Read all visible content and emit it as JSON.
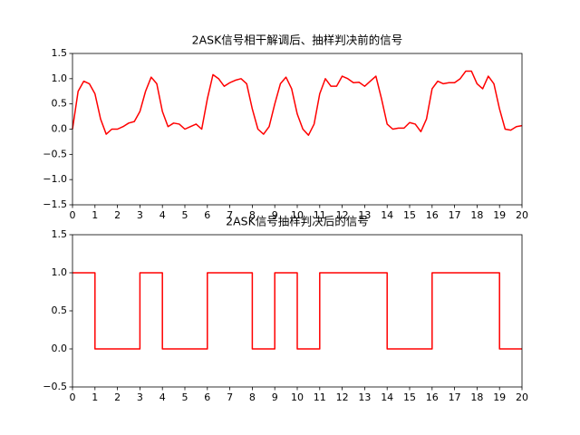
{
  "chart_data": [
    {
      "type": "line",
      "title": "2ASK信号相干解调后、抽样判决前的信号",
      "x": [
        0,
        0.25,
        0.5,
        0.75,
        1,
        1.25,
        1.5,
        1.75,
        2,
        2.25,
        2.5,
        2.75,
        3,
        3.25,
        3.5,
        3.75,
        4,
        4.25,
        4.5,
        4.75,
        5,
        5.25,
        5.5,
        5.75,
        6,
        6.25,
        6.5,
        6.75,
        7,
        7.25,
        7.5,
        7.75,
        8,
        8.25,
        8.5,
        8.75,
        9,
        9.25,
        9.5,
        9.75,
        10,
        10.25,
        10.5,
        10.75,
        11,
        11.25,
        11.5,
        11.75,
        12,
        12.25,
        12.5,
        12.75,
        13,
        13.25,
        13.5,
        13.75,
        14,
        14.25,
        14.5,
        14.75,
        15,
        15.25,
        15.5,
        15.75,
        16,
        16.25,
        16.5,
        16.75,
        17,
        17.25,
        17.5,
        17.75,
        18,
        18.25,
        18.5,
        18.75,
        19,
        19.25,
        19.5,
        19.75,
        20
      ],
      "series": [
        {
          "color": "#ff0000",
          "values": [
            0.0,
            0.75,
            0.95,
            0.9,
            0.7,
            0.2,
            -0.1,
            0.0,
            0.0,
            0.05,
            0.12,
            0.15,
            0.35,
            0.75,
            1.03,
            0.9,
            0.35,
            0.05,
            0.12,
            0.1,
            0.0,
            0.05,
            0.1,
            0.0,
            0.6,
            1.08,
            1.0,
            0.85,
            0.92,
            0.97,
            1.0,
            0.9,
            0.4,
            0.0,
            -0.1,
            0.05,
            0.5,
            0.9,
            1.03,
            0.8,
            0.3,
            0.0,
            -0.12,
            0.1,
            0.7,
            1.0,
            0.85,
            0.85,
            1.05,
            1.0,
            0.92,
            0.93,
            0.85,
            0.95,
            1.05,
            0.6,
            0.1,
            0.0,
            0.02,
            0.02,
            0.13,
            0.1,
            -0.05,
            0.2,
            0.8,
            0.95,
            0.9,
            0.92,
            0.92,
            1.0,
            1.15,
            1.15,
            0.9,
            0.8,
            1.05,
            0.9,
            0.4,
            0.0,
            -0.02,
            0.05,
            0.07
          ]
        }
      ],
      "xlim": [
        0,
        20
      ],
      "xticks": [
        0,
        1,
        2,
        3,
        4,
        5,
        6,
        7,
        8,
        9,
        10,
        11,
        12,
        13,
        14,
        15,
        16,
        17,
        18,
        19,
        20
      ],
      "ylim": [
        -1.5,
        1.5
      ],
      "yticks": [
        {
          "value": -1.5,
          "label": "−1.5"
        },
        {
          "value": -1,
          "label": "−1.0"
        },
        {
          "value": -0.5,
          "label": "−0.5"
        },
        {
          "value": 0,
          "label": "0.0"
        },
        0.5,
        {
          "value": 1,
          "label": "1.0"
        },
        1.5
      ]
    },
    {
      "type": "line",
      "title": "2ASK信号抽样判决后的信号",
      "x": [
        0,
        1,
        1,
        3,
        3,
        4,
        4,
        6,
        6,
        8,
        8,
        9,
        9,
        10,
        10,
        11,
        11,
        14,
        14,
        16,
        16,
        19,
        19,
        20
      ],
      "series": [
        {
          "color": "#ff0000",
          "values": [
            1,
            1,
            0,
            0,
            1,
            1,
            0,
            0,
            1,
            1,
            0,
            0,
            1,
            1,
            0,
            0,
            1,
            1,
            0,
            0,
            1,
            1,
            0,
            0
          ]
        }
      ],
      "xlim": [
        0,
        20
      ],
      "xticks": [
        0,
        1,
        2,
        3,
        4,
        5,
        6,
        7,
        8,
        9,
        10,
        11,
        12,
        13,
        14,
        15,
        16,
        17,
        18,
        19,
        20
      ],
      "ylim": [
        -0.5,
        1.5
      ],
      "yticks": [
        {
          "value": -0.5,
          "label": "−0.5"
        },
        {
          "value": 0,
          "label": "0.0"
        },
        0.5,
        {
          "value": 1,
          "label": "1.0"
        },
        1.5
      ]
    }
  ]
}
